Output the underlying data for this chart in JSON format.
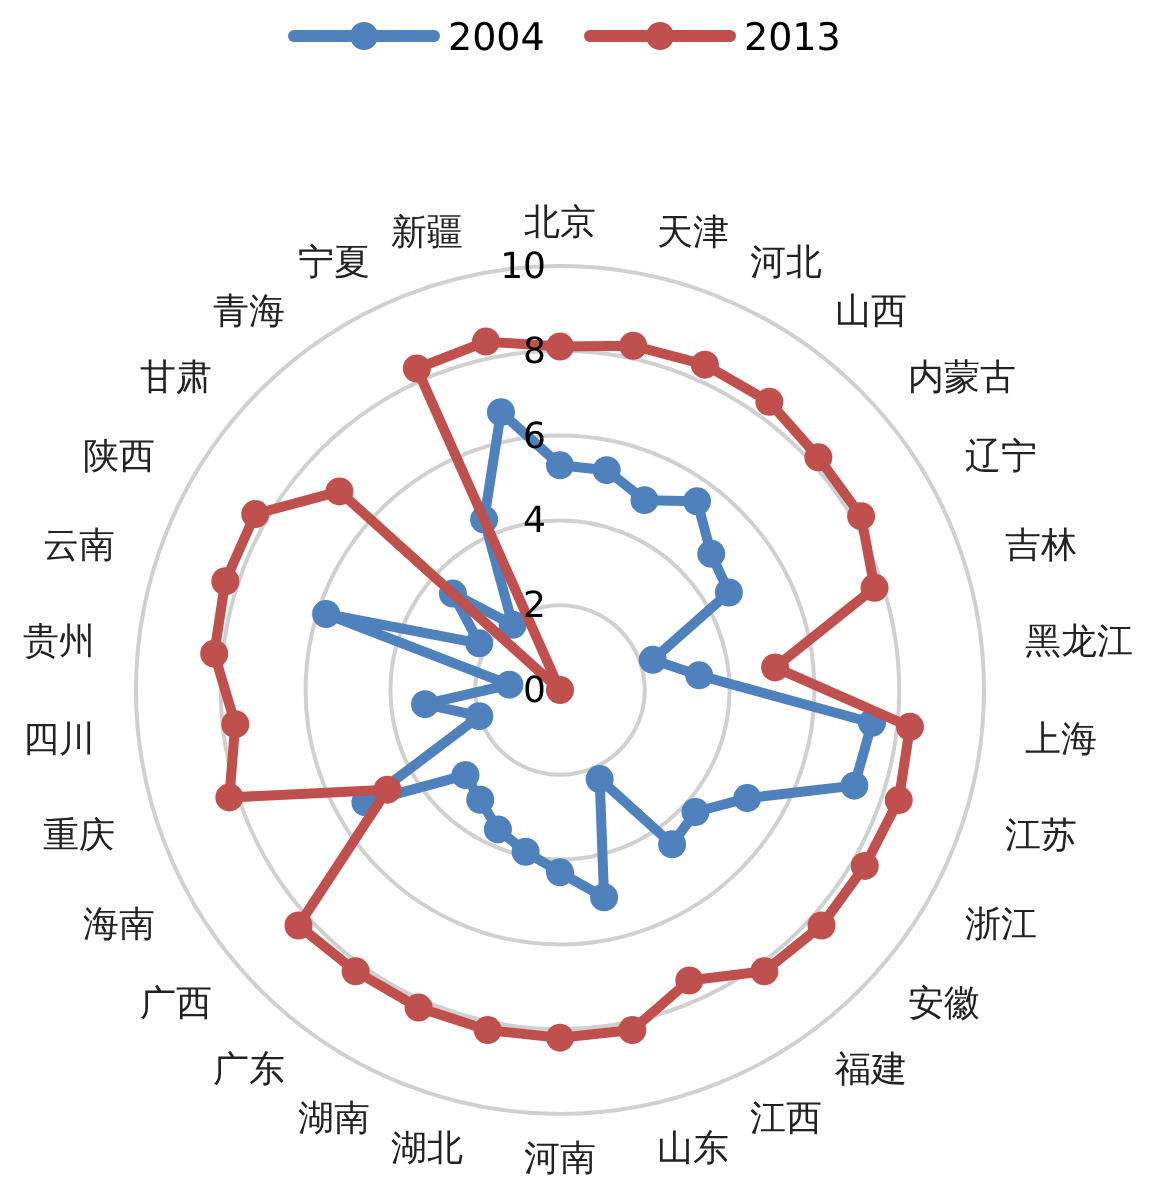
{
  "chart_data": {
    "type": "radar",
    "categories": [
      "北京",
      "天津",
      "河北",
      "山西",
      "内蒙古",
      "辽宁",
      "吉林",
      "黑龙江",
      "上海",
      "江苏",
      "浙江",
      "安徽",
      "福建",
      "江西",
      "山东",
      "河南",
      "湖北",
      "湖南",
      "广东",
      "广西",
      "海南",
      "重庆",
      "四川",
      "贵州",
      "云南",
      "陕西",
      "甘肃",
      "青海",
      "宁夏",
      "新疆"
    ],
    "series": [
      {
        "name": "2004",
        "color": "#4f81bd",
        "values": [
          5.3,
          5.3,
          4.9,
          5.5,
          4.8,
          4.6,
          2.3,
          3.3,
          7.4,
          7.3,
          5.1,
          4.3,
          4.5,
          2.3,
          5.0,
          4.3,
          3.9,
          3.6,
          3.2,
          3.0,
          5.3,
          2.0,
          3.2,
          1.2,
          5.8,
          2.2,
          3.4,
          1.9,
          4.4,
          6.7
        ]
      },
      {
        "name": "2013",
        "color": "#c0504d",
        "values": [
          8.1,
          8.3,
          8.4,
          8.4,
          8.2,
          8.2,
          7.8,
          5.1,
          8.3,
          8.4,
          8.3,
          8.3,
          8.2,
          7.5,
          8.2,
          8.2,
          8.2,
          8.2,
          8.2,
          8.3,
          4.7,
          8.2,
          7.7,
          8.2,
          8.3,
          8.3,
          7.0,
          0,
          8.3,
          8.4
        ]
      }
    ],
    "ylim": [
      0,
      10
    ],
    "yticks": [
      0,
      2,
      4,
      6,
      8,
      10
    ],
    "grid": true,
    "legend": "top",
    "marker": "circle"
  }
}
